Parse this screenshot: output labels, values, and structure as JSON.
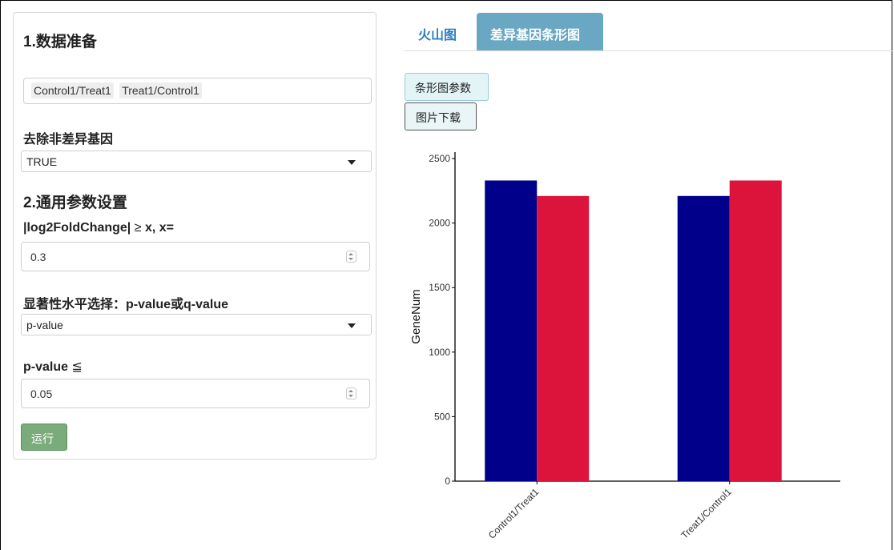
{
  "left_panel": {
    "section1_title": "1.数据准备",
    "comparisons": [
      "Control1/Treat1",
      "Treat1/Control1"
    ],
    "remove_nondiff_label": "去除非差异基因",
    "remove_nondiff_value": "TRUE",
    "section2_title": "2.通用参数设置",
    "lfc_label_bold": "|log2FoldChange|",
    "lfc_label_sym": " ≥ ",
    "lfc_label_tail": "x, x=",
    "lfc_value": "0.3",
    "sig_label": "显著性水平选择：p-value或q-value",
    "sig_value": "p-value",
    "pvalue_label_bold": "p-value",
    "pvalue_label_sym": " ≦",
    "pvalue_value": "0.05",
    "run_button": "运行"
  },
  "tabs": [
    {
      "label": "火山图",
      "active": false
    },
    {
      "label": "差异基因条形图",
      "active": true
    }
  ],
  "buttons": {
    "bar_params": "条形图参数",
    "download": "图片下载"
  },
  "colors": {
    "series_up": "#00008b",
    "series_down": "#dc143c",
    "tab_active": "#6aa7c3",
    "run_button": "#7aab7a"
  },
  "chart_data": {
    "type": "bar",
    "categories": [
      "Control1/Treat1",
      "Treat1/Control1"
    ],
    "series": [
      {
        "values": [
          2330,
          2210
        ],
        "color": "#00008b"
      },
      {
        "values": [
          2210,
          2330
        ],
        "color": "#dc143c"
      }
    ],
    "ylabel": "GeneNum",
    "yticks": [
      0,
      500,
      1000,
      1500,
      2000,
      2500
    ],
    "ylim": [
      0,
      2550
    ],
    "grid": false
  }
}
